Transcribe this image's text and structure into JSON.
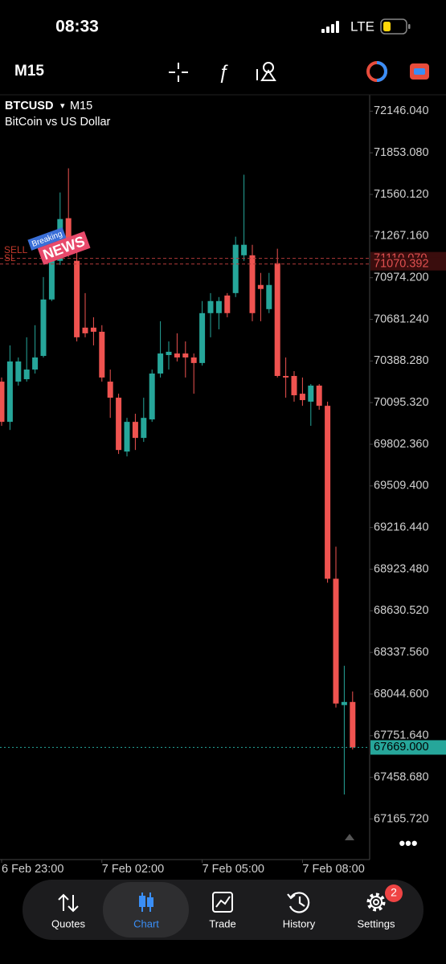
{
  "status_bar": {
    "time": "08:33",
    "network": "LTE"
  },
  "toolbar": {
    "timeframe": "M15"
  },
  "news_badge": {
    "breaking": "Breaking",
    "news": "NEWS"
  },
  "chart_data": {
    "type": "candlestick",
    "title": "BTCUSD",
    "timeframe": "M15",
    "subtitle": "BitCoin vs US Dollar",
    "x": [
      "6 Feb 23:00",
      null,
      null,
      null,
      null,
      null,
      null,
      null,
      null,
      null,
      null,
      null,
      "7 Feb 02:00",
      null,
      null,
      null,
      null,
      null,
      null,
      null,
      null,
      null,
      null,
      null,
      "7 Feb 05:00",
      null,
      null,
      null,
      null,
      null,
      null,
      null,
      null,
      null,
      null,
      null,
      "7 Feb 08:00",
      null,
      null,
      null,
      null,
      null,
      null
    ],
    "open": [
      70243,
      69960,
      70243,
      70260,
      70328,
      70424,
      70821,
      71093,
      71393,
      71093,
      70623,
      70623,
      70594,
      70243,
      70130,
      69751,
      69960,
      69847,
      69977,
      70300,
      70430,
      70441,
      70441,
      70413,
      70374,
      70725,
      70725,
      70849,
      70866,
      71132,
      71132,
      70923,
      70753,
      71076,
      70283,
      70283,
      70158,
      70102,
      70215,
      70073,
      68856,
      67967,
      67989
    ],
    "high": [
      70272,
      70498,
      70413,
      70555,
      70640,
      70979,
      71206,
      71574,
      71744,
      71234,
      70866,
      70696,
      70640,
      70328,
      70158,
      69988,
      70017,
      70130,
      70328,
      70668,
      70526,
      70583,
      70526,
      70441,
      70810,
      70866,
      70838,
      70866,
      71263,
      71699,
      71206,
      71008,
      71008,
      71178,
      70413,
      70317,
      70272,
      70226,
      70226,
      70102,
      69082,
      68244,
      68063
    ],
    "low": [
      69932,
      69903,
      70215,
      70243,
      70300,
      70413,
      70810,
      71064,
      71121,
      70526,
      70555,
      70498,
      70243,
      69988,
      69734,
      69717,
      69762,
      69819,
      69960,
      70272,
      70328,
      70385,
      70272,
      70158,
      70356,
      70555,
      70611,
      70696,
      70838,
      71093,
      70668,
      70668,
      70725,
      70272,
      70130,
      70102,
      70073,
      69932,
      70045,
      68828,
      67950,
      67338,
      67655
    ],
    "close": [
      69960,
      70385,
      70385,
      70328,
      70413,
      70821,
      71093,
      71387,
      71234,
      70555,
      70583,
      70594,
      70272,
      70130,
      69762,
      69960,
      69847,
      69988,
      70300,
      70441,
      70453,
      70413,
      70413,
      70374,
      70725,
      70810,
      70810,
      70725,
      71206,
      71206,
      70725,
      70895,
      70923,
      70283,
      70272,
      70147,
      70113,
      70215,
      70073,
      68856,
      67978,
      67989,
      67669
    ],
    "up_color": "#26a69a",
    "down_color": "#ef5350",
    "ylim": [
      66880,
      72250
    ],
    "yticks": [
      {
        "value": 72146.04,
        "label": "72146.040"
      },
      {
        "value": 71853.08,
        "label": "71853.080"
      },
      {
        "value": 71560.12,
        "label": "71560.120"
      },
      {
        "value": 71267.16,
        "label": "71267.160"
      },
      {
        "value": 70974.2,
        "label": "70974.200"
      },
      {
        "value": 70681.24,
        "label": "70681.240"
      },
      {
        "value": 70388.28,
        "label": "70388.280"
      },
      {
        "value": 70095.32,
        "label": "70095.320"
      },
      {
        "value": 69802.36,
        "label": "69802.360"
      },
      {
        "value": 69509.4,
        "label": "69509.400"
      },
      {
        "value": 69216.44,
        "label": "69216.440"
      },
      {
        "value": 68923.48,
        "label": "68923.480"
      },
      {
        "value": 68630.52,
        "label": "68630.520"
      },
      {
        "value": 68337.56,
        "label": "68337.560"
      },
      {
        "value": 68044.6,
        "label": "68044.600"
      },
      {
        "value": 67751.64,
        "label": "67751.640"
      },
      {
        "value": 67458.68,
        "label": "67458.680"
      },
      {
        "value": 67165.72,
        "label": "67165.720"
      }
    ],
    "current_price": {
      "value": 67669,
      "label": "67669.000"
    },
    "sell_level": {
      "name": "SELL",
      "value": 71110.07,
      "label": "71110.070"
    },
    "sl_level": {
      "name": "SL",
      "value": 71070.392,
      "label": "71070.392"
    }
  },
  "nav": {
    "items": [
      "Quotes",
      "Chart",
      "Trade",
      "History",
      "Settings"
    ],
    "badge": "2"
  }
}
